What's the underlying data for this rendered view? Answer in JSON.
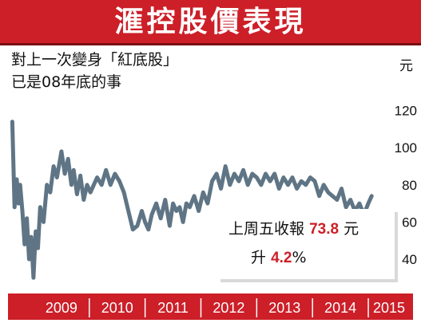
{
  "header": {
    "title": "滙控股價表現"
  },
  "subtitle": {
    "line1": "對上一次變身「紅底股」",
    "line2": "已是08年底的事"
  },
  "callout": {
    "label1": "上周五收報",
    "close_price": "73.8",
    "currency": "元",
    "label2": "升",
    "change_pct": "4.2",
    "pct_sign": "%"
  },
  "chart_data": {
    "type": "line",
    "title": "滙控股價表現",
    "ylabel": "元",
    "ylim": [
      25,
      128
    ],
    "y_ticks": [
      40,
      60,
      80,
      100,
      120
    ],
    "x_tick_labels": [
      "2009",
      "2010",
      "2011",
      "2012",
      "2013",
      "2014",
      "2015"
    ],
    "x_range": [
      2008.6,
      2015.3
    ],
    "grid": false,
    "line_color": "#5f7585",
    "series": [
      {
        "x": [
          2008.62,
          2008.66,
          2008.7,
          2008.73,
          2008.76,
          2008.8,
          2008.84,
          2008.88,
          2008.92,
          2008.96,
          2009.0,
          2009.04,
          2009.08,
          2009.12,
          2009.18,
          2009.24,
          2009.3,
          2009.36,
          2009.42,
          2009.5,
          2009.56,
          2009.62,
          2009.68,
          2009.72,
          2009.78,
          2009.84,
          2009.9,
          2009.96,
          2010.02,
          2010.08,
          2010.14,
          2010.22,
          2010.3,
          2010.38,
          2010.46,
          2010.54,
          2010.62,
          2010.7,
          2010.78,
          2010.86,
          2010.94,
          2011.0,
          2011.06,
          2011.12,
          2011.2,
          2011.28,
          2011.36,
          2011.44,
          2011.5,
          2011.56,
          2011.62,
          2011.68,
          2011.74,
          2011.8,
          2011.88,
          2011.96,
          2012.04,
          2012.12,
          2012.2,
          2012.28,
          2012.36,
          2012.44,
          2012.52,
          2012.6,
          2012.68,
          2012.76,
          2012.84,
          2012.92,
          2013.0,
          2013.08,
          2013.16,
          2013.24,
          2013.32,
          2013.4,
          2013.48,
          2013.56,
          2013.64,
          2013.72,
          2013.8,
          2013.88,
          2013.96,
          2014.04,
          2014.12,
          2014.2,
          2014.28,
          2014.36,
          2014.44,
          2014.52,
          2014.6,
          2014.68,
          2014.76,
          2014.84,
          2014.92,
          2015.0,
          2015.06
        ],
        "y": [
          114,
          68,
          83,
          70,
          80,
          66,
          48,
          62,
          40,
          52,
          30,
          55,
          46,
          68,
          60,
          80,
          76,
          90,
          84,
          98,
          86,
          94,
          80,
          88,
          75,
          85,
          72,
          80,
          76,
          80,
          84,
          80,
          88,
          80,
          86,
          82,
          76,
          66,
          56,
          58,
          66,
          60,
          56,
          64,
          70,
          62,
          72,
          58,
          70,
          66,
          68,
          60,
          70,
          68,
          74,
          66,
          76,
          70,
          82,
          86,
          78,
          90,
          80,
          86,
          82,
          88,
          80,
          86,
          84,
          80,
          86,
          82,
          86,
          78,
          84,
          80,
          84,
          78,
          82,
          80,
          84,
          82,
          74,
          80,
          76,
          74,
          72,
          78,
          68,
          72,
          66,
          70,
          64,
          70,
          74
        ]
      }
    ]
  }
}
